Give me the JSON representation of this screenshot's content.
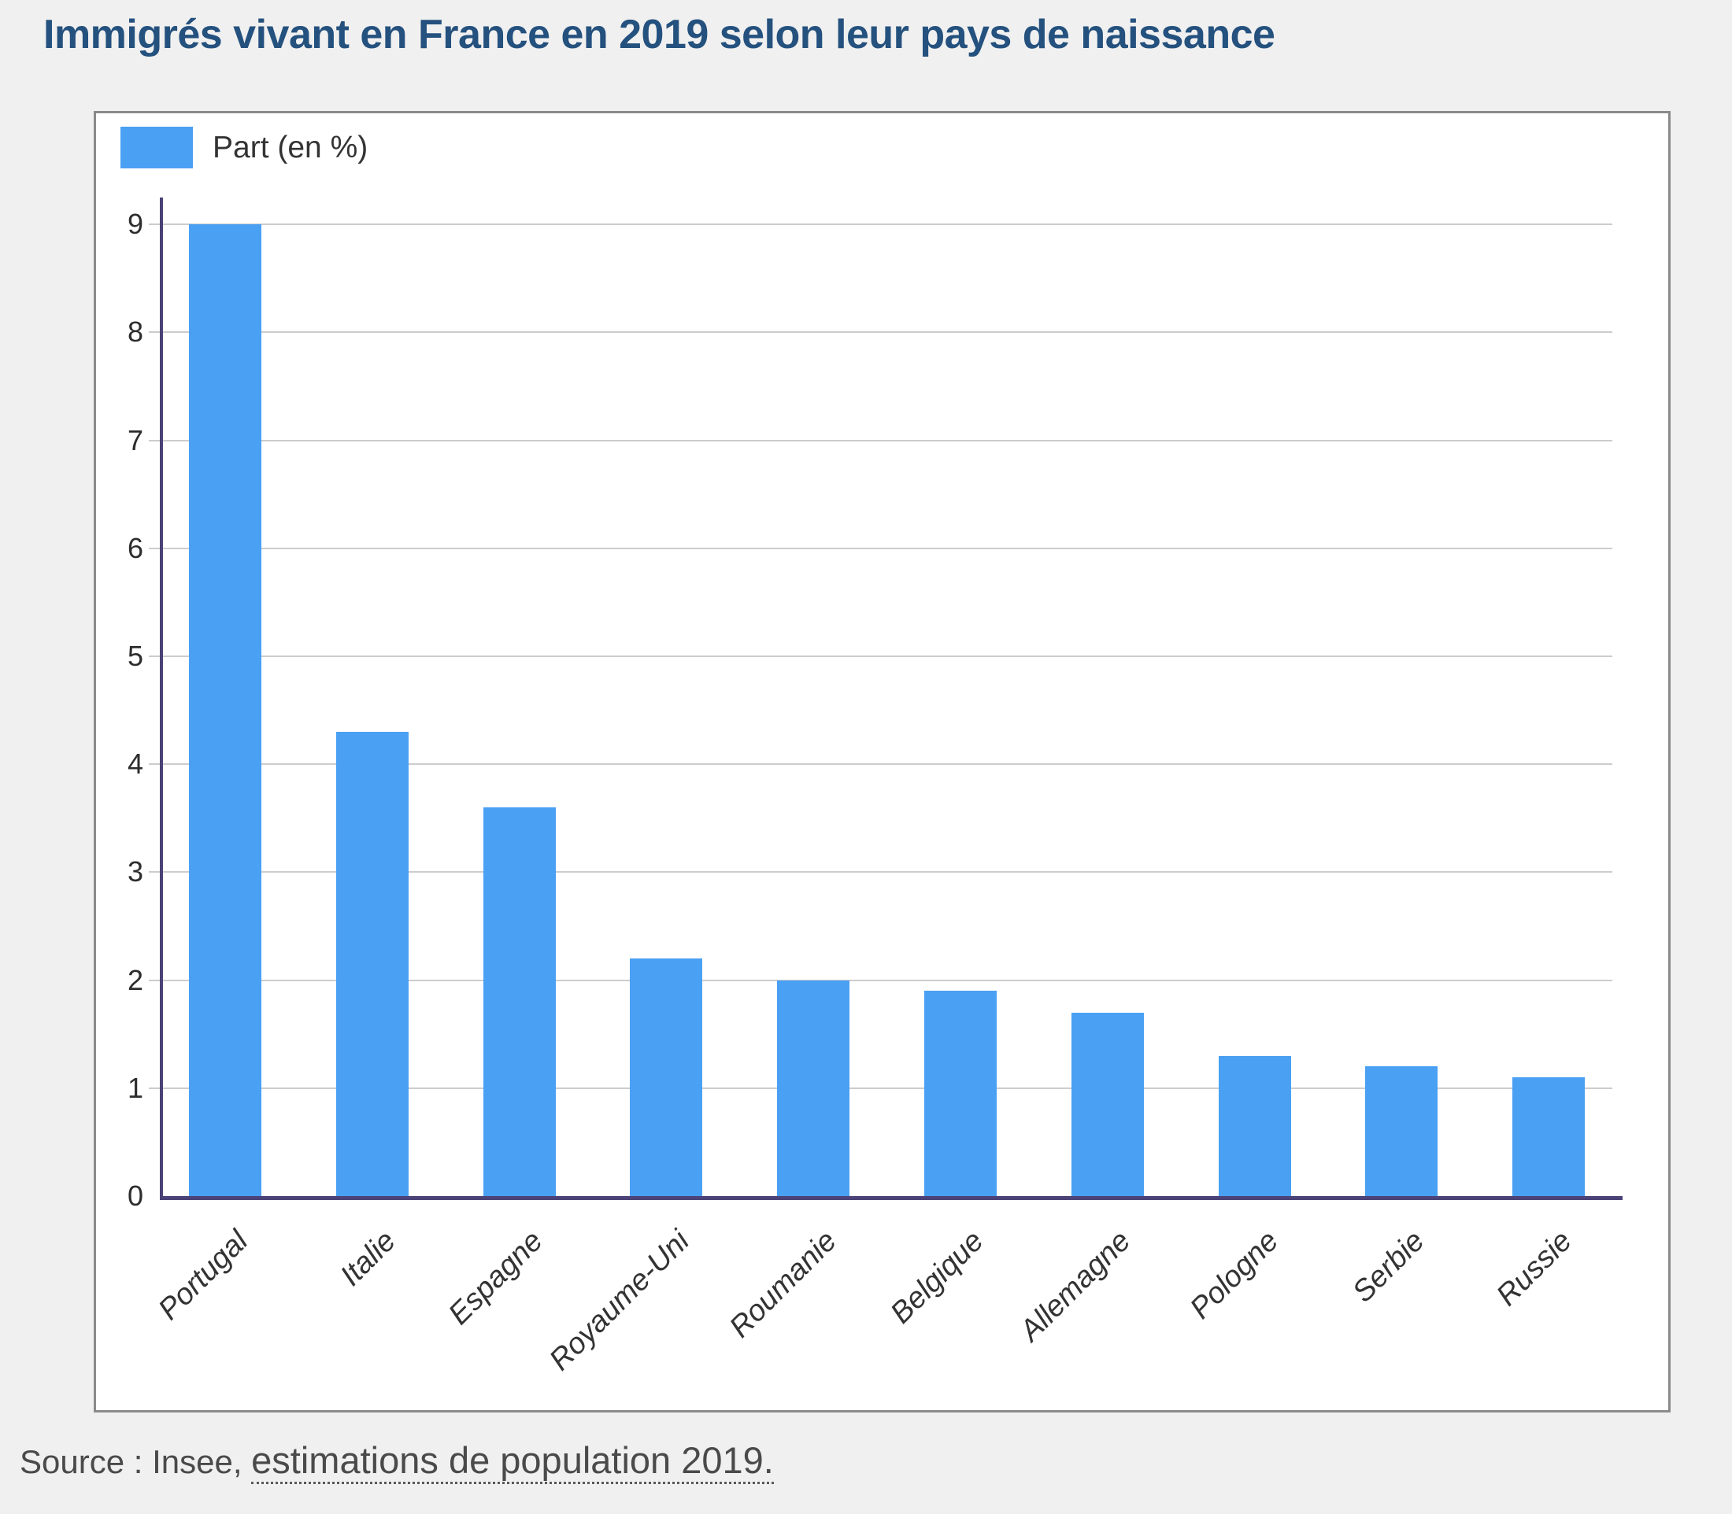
{
  "title": "Immigrés vivant en France en 2019 selon leur pays de naissance",
  "source": {
    "prefix": "Source : Insee, ",
    "link_text": "estimations de population 2019."
  },
  "colors": {
    "title": "#24517e",
    "bar": "#4aa0f3",
    "axis": "#4b4277",
    "grid": "#cccccc",
    "page_bg": "#f0f0f0",
    "panel_border": "#8a8a8a",
    "text": "#333333",
    "source_text": "#4a4a4a"
  },
  "chart_data": {
    "type": "bar",
    "title": "Immigrés vivant en France en 2019 selon leur pays de naissance",
    "legend": "Part (en %)",
    "legend_position": "top-left",
    "categories": [
      "Portugal",
      "Italie",
      "Espagne",
      "Royaume-Uni",
      "Roumanie",
      "Belgique",
      "Allemagne",
      "Pologne",
      "Serbie",
      "Russie"
    ],
    "values": [
      9,
      4.3,
      3.6,
      2.2,
      2,
      1.9,
      1.7,
      1.3,
      1.2,
      1.1
    ],
    "xlabel": "",
    "ylabel": "",
    "ylim": [
      0,
      9.3
    ],
    "y_ticks": [
      0,
      1,
      2,
      3,
      4,
      5,
      6,
      7,
      8,
      9
    ],
    "grid": true
  }
}
